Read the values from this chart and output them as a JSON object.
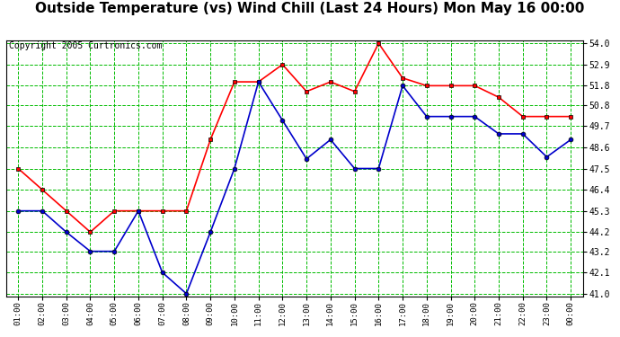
{
  "title": "Outside Temperature (vs) Wind Chill (Last 24 Hours) Mon May 16 00:00",
  "copyright": "Copyright 2005 Curtronics.com",
  "x_labels": [
    "01:00",
    "02:00",
    "03:00",
    "04:00",
    "05:00",
    "06:00",
    "07:00",
    "08:00",
    "09:00",
    "10:00",
    "11:00",
    "12:00",
    "13:00",
    "14:00",
    "15:00",
    "16:00",
    "17:00",
    "18:00",
    "19:00",
    "20:00",
    "21:00",
    "22:00",
    "23:00",
    "00:00"
  ],
  "ylim": [
    41.0,
    54.0
  ],
  "yticks": [
    41.0,
    42.1,
    43.2,
    44.2,
    45.3,
    46.4,
    47.5,
    48.6,
    49.7,
    50.8,
    51.8,
    52.9,
    54.0
  ],
  "red_data": [
    47.5,
    46.4,
    45.3,
    44.2,
    45.3,
    45.3,
    45.3,
    45.3,
    49.0,
    52.0,
    52.0,
    52.9,
    51.5,
    52.0,
    51.5,
    54.0,
    52.2,
    51.8,
    51.8,
    51.8,
    51.2,
    50.2,
    50.2,
    50.2
  ],
  "blue_data": [
    45.3,
    45.3,
    44.2,
    43.2,
    43.2,
    45.3,
    42.1,
    41.0,
    44.2,
    47.5,
    52.0,
    50.0,
    48.0,
    49.0,
    47.5,
    47.5,
    51.8,
    50.2,
    50.2,
    50.2,
    49.3,
    49.3,
    48.1,
    49.0
  ],
  "red_color": "#ff0000",
  "blue_color": "#0000cc",
  "green_color": "#00bb00",
  "bg_color": "#ffffff",
  "grid_color": "#00bb00",
  "title_fontsize": 11,
  "copyright_fontsize": 7
}
